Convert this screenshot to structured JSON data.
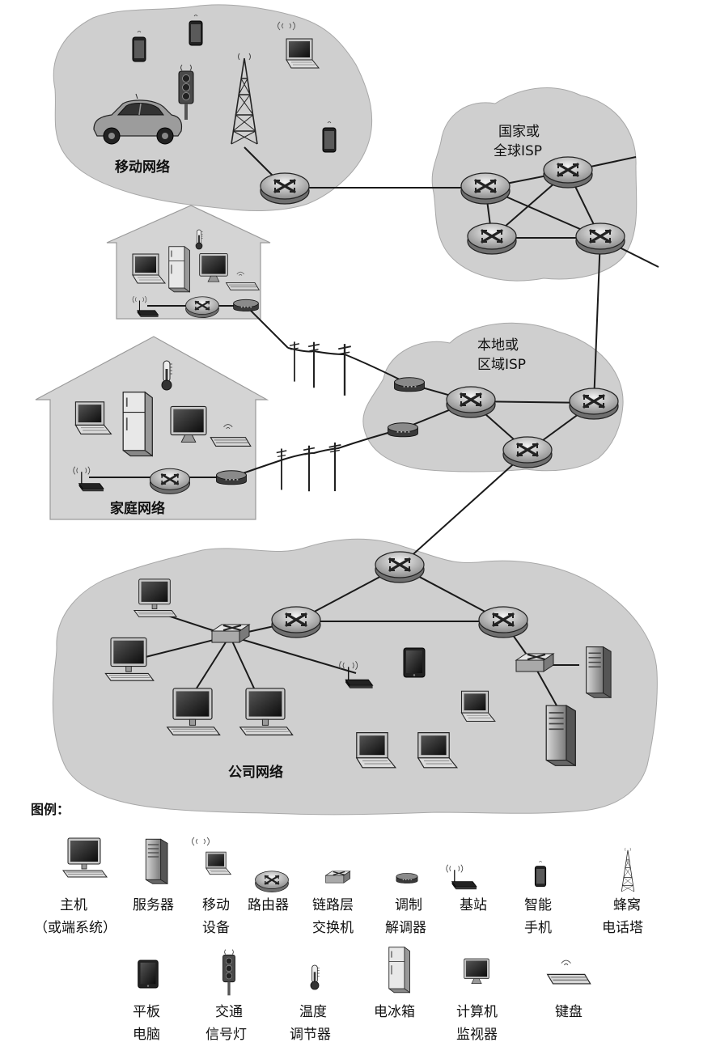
{
  "regions": {
    "mobile": "移动网络",
    "national_isp_line1": "国家或",
    "national_isp_line2": "全球ISP",
    "local_isp_line1": "本地或",
    "local_isp_line2": "区域ISP",
    "home": "家庭网络",
    "enterprise": "公司网络"
  },
  "legend": {
    "title": "图例：",
    "items": [
      {
        "icon": "host-icon",
        "line1": "主机",
        "line2": "（或端系统）"
      },
      {
        "icon": "server-icon",
        "line1": "服务器",
        "line2": ""
      },
      {
        "icon": "mobile-device-icon",
        "line1": "移动",
        "line2": "设备"
      },
      {
        "icon": "router-icon",
        "line1": "路由器",
        "line2": ""
      },
      {
        "icon": "link-layer-switch-icon",
        "line1": "链路层",
        "line2": "交换机"
      },
      {
        "icon": "modem-icon",
        "line1": "调制",
        "line2": "解调器"
      },
      {
        "icon": "base-station-icon",
        "line1": "基站",
        "line2": ""
      },
      {
        "icon": "smartphone-icon",
        "line1": "智能",
        "line2": "手机"
      },
      {
        "icon": "cell-tower-icon",
        "line1": "蜂窝",
        "line2": "电话塔"
      },
      {
        "icon": "tablet-icon",
        "line1": "平板",
        "line2": "电脑"
      },
      {
        "icon": "traffic-light-icon",
        "line1": "交通",
        "line2": "信号灯"
      },
      {
        "icon": "thermostat-icon",
        "line1": "温度",
        "line2": "调节器"
      },
      {
        "icon": "refrigerator-icon",
        "line1": "电冰箱",
        "line2": ""
      },
      {
        "icon": "computer-monitor-icon",
        "line1": "计算机",
        "line2": "监视器"
      },
      {
        "icon": "keyboard-icon",
        "line1": "键盘",
        "line2": ""
      }
    ]
  }
}
